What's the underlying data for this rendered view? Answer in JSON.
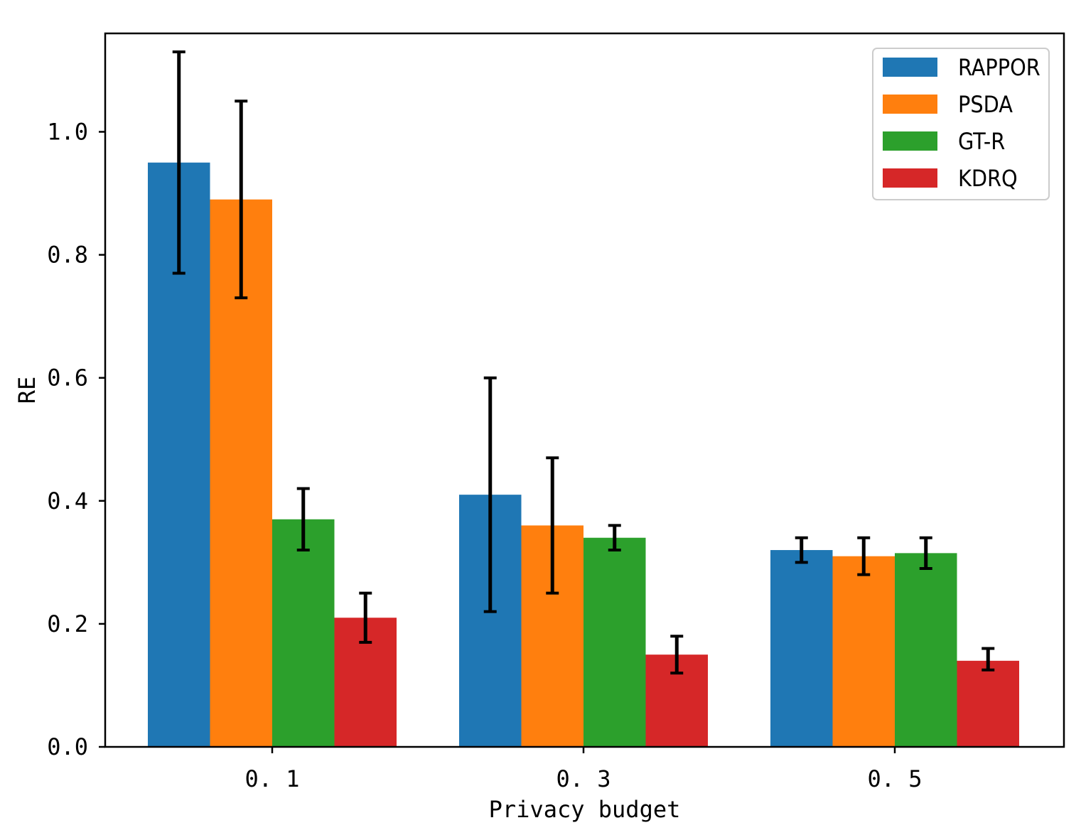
{
  "chart_data": {
    "type": "bar",
    "title": "",
    "xlabel": "Privacy budget",
    "ylabel": "RE",
    "ylim": [
      0,
      1.16
    ],
    "yticks": [
      0.0,
      0.2,
      0.4,
      0.6,
      0.8,
      1.0
    ],
    "ytick_labels": [
      "0.0",
      "0.2",
      "0.4",
      "0.6",
      "0.8",
      "1.0"
    ],
    "categories": [
      "0.1",
      "0.3",
      "0.5"
    ],
    "category_labels": [
      "0. 1",
      "0. 3",
      "0. 5"
    ],
    "legend_position": "top-right",
    "series": [
      {
        "name": "RAPPOR",
        "color": "#1f77b4",
        "values": [
          0.95,
          0.41,
          0.32
        ],
        "err_low": [
          0.77,
          0.22,
          0.3
        ],
        "err_high": [
          1.13,
          0.6,
          0.34
        ]
      },
      {
        "name": "PSDA",
        "color": "#ff7f0e",
        "values": [
          0.89,
          0.36,
          0.31
        ],
        "err_low": [
          0.73,
          0.25,
          0.28
        ],
        "err_high": [
          1.05,
          0.47,
          0.34
        ]
      },
      {
        "name": "GT-R",
        "color": "#2ca02c",
        "values": [
          0.37,
          0.34,
          0.315
        ],
        "err_low": [
          0.32,
          0.32,
          0.29
        ],
        "err_high": [
          0.42,
          0.36,
          0.34
        ]
      },
      {
        "name": "KDRQ",
        "color": "#d62728",
        "values": [
          0.21,
          0.15,
          0.14
        ],
        "err_low": [
          0.17,
          0.12,
          0.125
        ],
        "err_high": [
          0.25,
          0.18,
          0.16
        ]
      }
    ]
  }
}
